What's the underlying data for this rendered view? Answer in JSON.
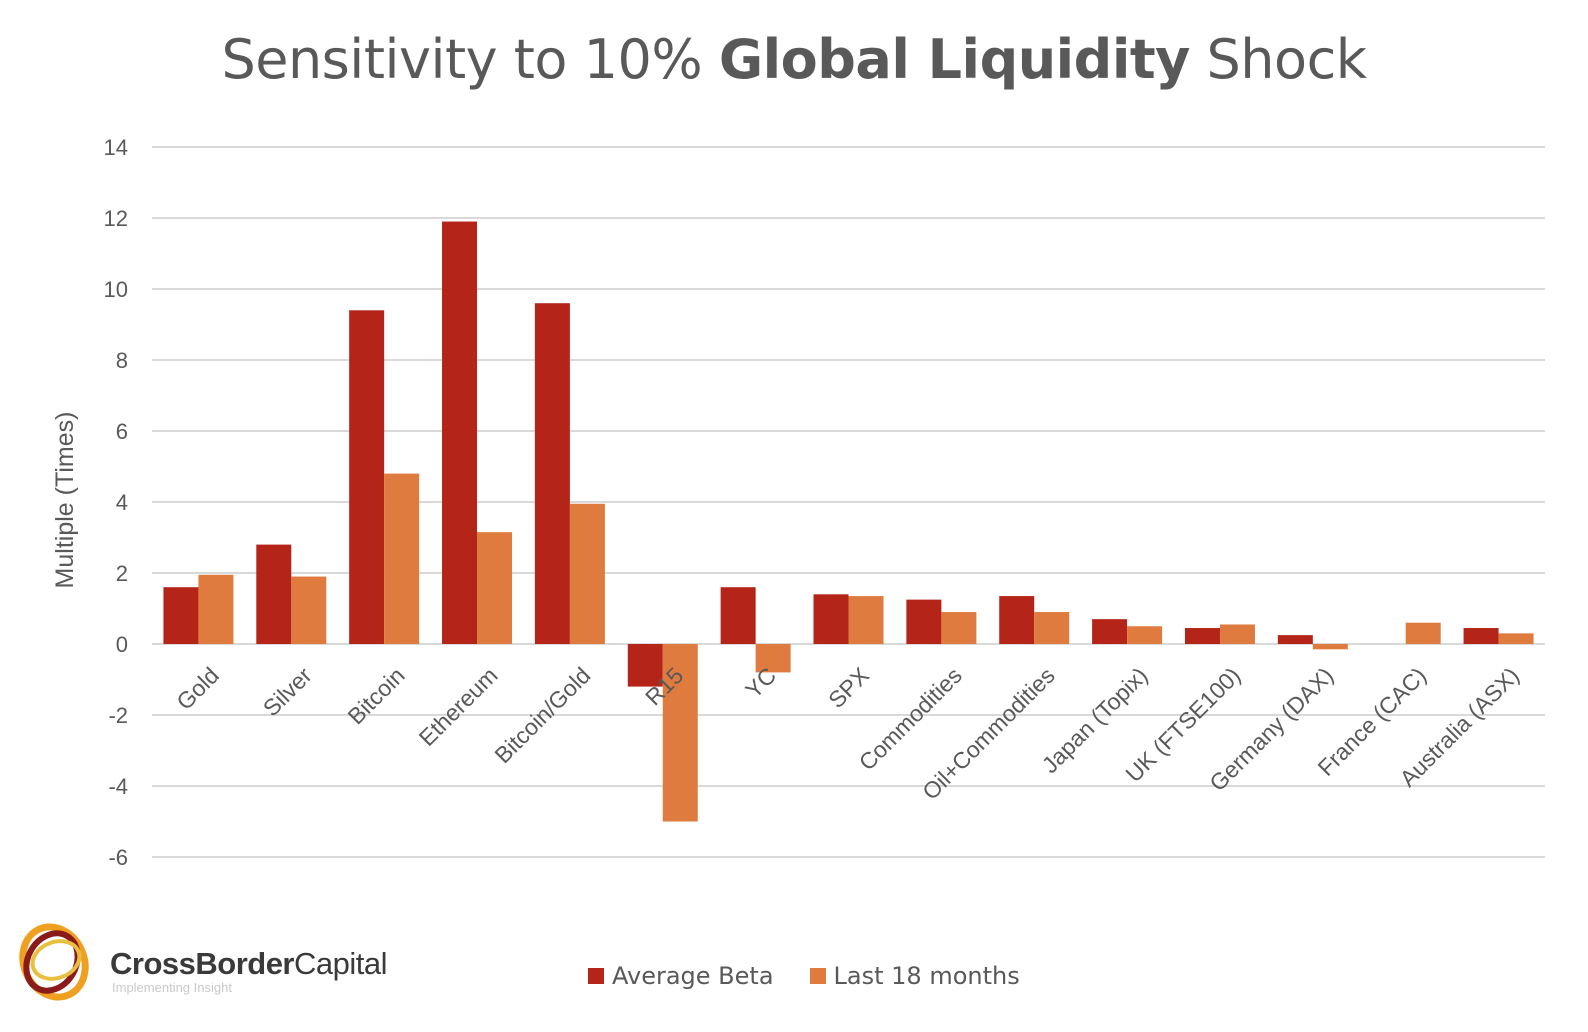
{
  "title": {
    "part1": "Sensitivity to 10% ",
    "part2": "Global Liquidity",
    "part3": " Shock"
  },
  "chart_data": {
    "type": "bar",
    "title": "Sensitivity to 10% Global Liquidity Shock",
    "xlabel": "",
    "ylabel": "Multiple (Times)",
    "ylim": [
      -6,
      14
    ],
    "yticks": [
      14,
      12,
      10,
      8,
      6,
      4,
      2,
      0,
      -2,
      -4,
      -6
    ],
    "grid": true,
    "legend_position": "bottom",
    "categories": [
      "Gold",
      "Silver",
      "Bitcoin",
      "Ethereum",
      "Bitcoin/Gold",
      "R15",
      "YC",
      "SPX",
      "Commodities",
      "Oil+Commodities",
      "Japan (Topix)",
      "UK (FTSE100)",
      "Germany (DAX)",
      "France (CAC)",
      "Australia (ASX)"
    ],
    "series": [
      {
        "name": "Average Beta",
        "color": "#b52418",
        "values": [
          1.6,
          2.8,
          9.4,
          11.9,
          9.6,
          -1.2,
          1.6,
          1.4,
          1.25,
          1.35,
          0.7,
          0.45,
          0.25,
          null,
          0.45
        ]
      },
      {
        "name": "Last 18 months",
        "color": "#e07b3f",
        "values": [
          1.95,
          1.9,
          4.8,
          3.15,
          3.95,
          -5.0,
          -0.8,
          1.35,
          0.9,
          0.9,
          0.5,
          0.55,
          -0.15,
          0.6,
          0.3
        ]
      }
    ]
  },
  "legend": {
    "items": [
      {
        "label": "Average Beta",
        "color": "#b52418"
      },
      {
        "label": "Last 18 months",
        "color": "#e07b3f"
      }
    ]
  },
  "logo": {
    "name_bold": "CrossBorder",
    "name_regular": "Capital",
    "tagline": "Implementing Insight"
  }
}
